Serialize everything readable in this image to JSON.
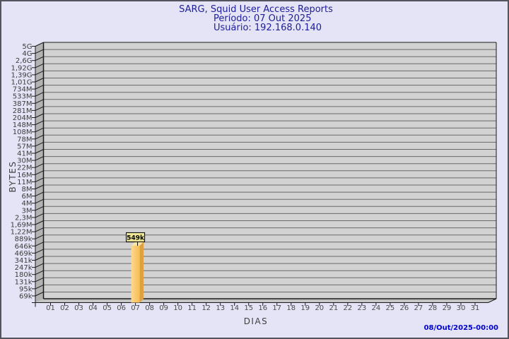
{
  "header": {
    "title": "SARG, Squid User Access Reports",
    "period": "Período: 07 Out 2025",
    "user": "Usuário: 192.168.0.140"
  },
  "footer": {
    "timestamp": "08/Out/2025-00:00"
  },
  "chart_data": {
    "type": "bar",
    "title": "SARG, Squid User Access Reports",
    "subtitle": [
      "Período: 07 Out 2025",
      "Usuário: 192.168.0.140"
    ],
    "xlabel": "DIAS",
    "ylabel": "BYTES",
    "y_scale": "log",
    "grid": "horizontal",
    "legend": "none",
    "y_tick_labels": [
      "5G",
      "4G",
      "2,6G",
      "1,92G",
      "1,39G",
      "1,01G",
      "734M",
      "533M",
      "387M",
      "281M",
      "204M",
      "148M",
      "108M",
      "78M",
      "57M",
      "41M",
      "30M",
      "22M",
      "16M",
      "11M",
      "8M",
      "6M",
      "4M",
      "3M",
      "2,3M",
      "1,69M",
      "1,22M",
      "889k",
      "646k",
      "469k",
      "341k",
      "247k",
      "180k",
      "131k",
      "95k",
      "69k"
    ],
    "y_tick_values": [
      5000000000,
      4000000000,
      2600000000,
      1920000000,
      1390000000,
      1010000000,
      734000000,
      533000000,
      387000000,
      281000000,
      204000000,
      148000000,
      108000000,
      78000000,
      57000000,
      41000000,
      30000000,
      22000000,
      16000000,
      11000000,
      8000000,
      6000000,
      4000000,
      3000000,
      2300000,
      1690000,
      1220000,
      889000,
      646000,
      469000,
      341000,
      247000,
      180000,
      131000,
      95000,
      69000
    ],
    "categories": [
      "01",
      "02",
      "03",
      "04",
      "05",
      "06",
      "07",
      "08",
      "09",
      "10",
      "11",
      "12",
      "13",
      "14",
      "15",
      "16",
      "17",
      "18",
      "19",
      "20",
      "21",
      "22",
      "23",
      "24",
      "25",
      "26",
      "27",
      "28",
      "29",
      "30",
      "31"
    ],
    "values": [
      0,
      0,
      0,
      0,
      0,
      0,
      549000,
      0,
      0,
      0,
      0,
      0,
      0,
      0,
      0,
      0,
      0,
      0,
      0,
      0,
      0,
      0,
      0,
      0,
      0,
      0,
      0,
      0,
      0,
      0,
      0
    ],
    "bar_labels": [
      "",
      "",
      "",
      "",
      "",
      "",
      "549k",
      "",
      "",
      "",
      "",
      "",
      "",
      "",
      "",
      "",
      "",
      "",
      "",
      "",
      "",
      "",
      "",
      "",
      "",
      "",
      "",
      "",
      "",
      "",
      ""
    ],
    "annotations": [
      {
        "category": "07",
        "label": "549k",
        "value_bytes": 549000
      }
    ],
    "colors": {
      "background": "#e4e4f6",
      "border": "#54545e",
      "plot_bg": "#d2d2d2",
      "wall": "#b3b3b3",
      "floor": "#c4c4c4",
      "grid": "#6a6a6a",
      "frame": "#1a1a1a",
      "bar_front_light": "#fdda93",
      "bar_front": "#facb71",
      "bar_front_dark": "#f6bd58",
      "bar_side": "#dfa040",
      "bar_top": "#fbe4a6",
      "annotation_bg": "#ede796",
      "annotation_border": "#000000",
      "title_text": "#1d1d97",
      "timestamp_text": "#0000cd",
      "tick_text": "#3c3c3c"
    }
  }
}
